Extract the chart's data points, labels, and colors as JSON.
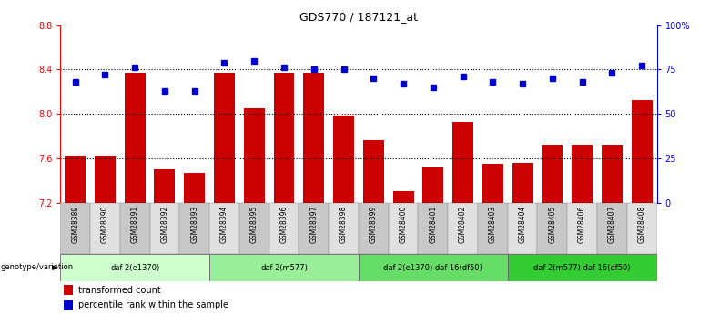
{
  "title": "GDS770 / 187121_at",
  "samples": [
    "GSM28389",
    "GSM28390",
    "GSM28391",
    "GSM28392",
    "GSM28393",
    "GSM28394",
    "GSM28395",
    "GSM28396",
    "GSM28397",
    "GSM28398",
    "GSM28399",
    "GSM28400",
    "GSM28401",
    "GSM28402",
    "GSM28403",
    "GSM28404",
    "GSM28405",
    "GSM28406",
    "GSM28407",
    "GSM28408"
  ],
  "transformed_count": [
    7.62,
    7.62,
    8.37,
    7.5,
    7.47,
    8.37,
    8.05,
    8.37,
    8.37,
    7.98,
    7.76,
    7.3,
    7.52,
    7.93,
    7.55,
    7.56,
    7.72,
    7.72,
    7.72,
    8.12
  ],
  "percentile_rank": [
    68,
    72,
    76,
    63,
    63,
    79,
    80,
    76,
    75,
    75,
    70,
    67,
    65,
    71,
    68,
    67,
    70,
    68,
    73,
    77
  ],
  "ylim_left": [
    7.2,
    8.8
  ],
  "ylim_right": [
    0,
    100
  ],
  "yticks_left": [
    7.2,
    7.6,
    8.0,
    8.4,
    8.8
  ],
  "yticks_right": [
    0,
    25,
    50,
    75,
    100
  ],
  "ytick_labels_right": [
    "0",
    "25",
    "50",
    "75",
    "100%"
  ],
  "hlines": [
    7.6,
    8.0,
    8.4
  ],
  "bar_color": "#CC0000",
  "dot_color": "#0000CC",
  "groups": [
    {
      "label": "daf-2(e1370)",
      "start": 0,
      "end": 5,
      "color": "#CCFFCC"
    },
    {
      "label": "daf-2(m577)",
      "start": 5,
      "end": 10,
      "color": "#99EE99"
    },
    {
      "label": "daf-2(e1370) daf-16(df50)",
      "start": 10,
      "end": 15,
      "color": "#66DD66"
    },
    {
      "label": "daf-2(m577) daf-16(df50)",
      "start": 15,
      "end": 20,
      "color": "#33CC33"
    }
  ],
  "legend_bar_label": "transformed count",
  "legend_dot_label": "percentile rank within the sample",
  "genotype_label": "genotype/variation"
}
